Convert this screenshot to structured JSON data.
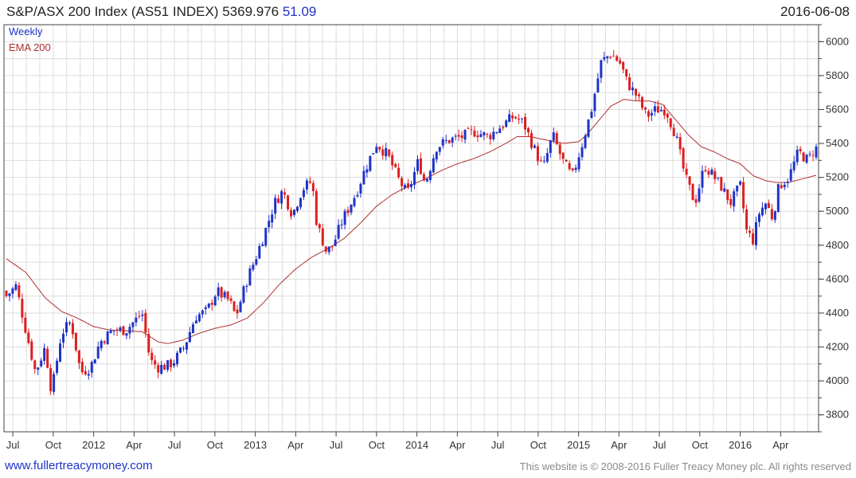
{
  "header": {
    "title": "S&P/ASX 200 Index (AS51 INDEX)",
    "last_price": "5369.976",
    "change": "51.09",
    "date": "2016-06-08"
  },
  "legend": {
    "series_1": "Weekly",
    "series_2": "EMA 200"
  },
  "footer": {
    "link": "www.fullertreacymoney.com",
    "copyright": "This website is © 2008-2016 Fuller Treacy Money plc. All rights reserved"
  },
  "colors": {
    "up": "#1f33c8",
    "down": "#dd1f1f",
    "ema": "#b03030",
    "grid": "#dcdcdc",
    "frame": "#444444"
  },
  "chart_data": {
    "type": "candlestick",
    "title": "S&P/ASX 200 Index (AS51 INDEX) 5369.976 51.09",
    "frequency": "Weekly",
    "ylim": [
      3700,
      6100
    ],
    "y_ticks": [
      3800,
      4000,
      4200,
      4400,
      4600,
      4800,
      5000,
      5200,
      5400,
      5600,
      5800,
      6000
    ],
    "x_start": 2011.46,
    "x_end": 2016.47,
    "x_ticks": [
      {
        "label": "Jul",
        "t": 2011.5
      },
      {
        "label": "Oct",
        "t": 2011.75
      },
      {
        "label": "2012",
        "t": 2012.0
      },
      {
        "label": "Apr",
        "t": 2012.25
      },
      {
        "label": "Jul",
        "t": 2012.5
      },
      {
        "label": "Oct",
        "t": 2012.75
      },
      {
        "label": "2013",
        "t": 2013.0
      },
      {
        "label": "Apr",
        "t": 2013.25
      },
      {
        "label": "Jul",
        "t": 2013.5
      },
      {
        "label": "Oct",
        "t": 2013.75
      },
      {
        "label": "2014",
        "t": 2014.0
      },
      {
        "label": "Apr",
        "t": 2014.25
      },
      {
        "label": "Jul",
        "t": 2014.5
      },
      {
        "label": "Oct",
        "t": 2014.75
      },
      {
        "label": "2015",
        "t": 2015.0
      },
      {
        "label": "Apr",
        "t": 2015.25
      },
      {
        "label": "Jul",
        "t": 2015.5
      },
      {
        "label": "Oct",
        "t": 2015.75
      },
      {
        "label": "2016",
        "t": 2016.0
      },
      {
        "label": "Apr",
        "t": 2016.25
      }
    ],
    "close_anchors": [
      [
        2011.46,
        4500
      ],
      [
        2011.52,
        4560
      ],
      [
        2011.58,
        4300
      ],
      [
        2011.64,
        4050
      ],
      [
        2011.7,
        4200
      ],
      [
        2011.74,
        3930
      ],
      [
        2011.8,
        4280
      ],
      [
        2011.86,
        4350
      ],
      [
        2011.92,
        4050
      ],
      [
        2011.98,
        4080
      ],
      [
        2012.04,
        4230
      ],
      [
        2012.12,
        4300
      ],
      [
        2012.2,
        4300
      ],
      [
        2012.25,
        4350
      ],
      [
        2012.3,
        4400
      ],
      [
        2012.35,
        4120
      ],
      [
        2012.4,
        4080
      ],
      [
        2012.46,
        4090
      ],
      [
        2012.5,
        4120
      ],
      [
        2012.56,
        4200
      ],
      [
        2012.63,
        4380
      ],
      [
        2012.7,
        4410
      ],
      [
        2012.76,
        4530
      ],
      [
        2012.84,
        4470
      ],
      [
        2012.88,
        4380
      ],
      [
        2012.95,
        4600
      ],
      [
        2013.0,
        4720
      ],
      [
        2013.06,
        4880
      ],
      [
        2013.12,
        5050
      ],
      [
        2013.17,
        5120
      ],
      [
        2013.23,
        4980
      ],
      [
        2013.29,
        5130
      ],
      [
        2013.35,
        5180
      ],
      [
        2013.38,
        4930
      ],
      [
        2013.44,
        4760
      ],
      [
        2013.48,
        4800
      ],
      [
        2013.54,
        4950
      ],
      [
        2013.62,
        5100
      ],
      [
        2013.68,
        5250
      ],
      [
        2013.75,
        5400
      ],
      [
        2013.82,
        5330
      ],
      [
        2013.88,
        5200
      ],
      [
        2013.94,
        5100
      ],
      [
        2014.01,
        5300
      ],
      [
        2014.05,
        5160
      ],
      [
        2014.12,
        5380
      ],
      [
        2014.2,
        5420
      ],
      [
        2014.28,
        5440
      ],
      [
        2014.36,
        5470
      ],
      [
        2014.44,
        5440
      ],
      [
        2014.52,
        5500
      ],
      [
        2014.6,
        5560
      ],
      [
        2014.66,
        5520
      ],
      [
        2014.72,
        5380
      ],
      [
        2014.78,
        5250
      ],
      [
        2014.84,
        5450
      ],
      [
        2014.9,
        5300
      ],
      [
        2014.96,
        5200
      ],
      [
        2015.02,
        5390
      ],
      [
        2015.08,
        5600
      ],
      [
        2015.14,
        5880
      ],
      [
        2015.2,
        5930
      ],
      [
        2015.26,
        5870
      ],
      [
        2015.3,
        5760
      ],
      [
        2015.36,
        5680
      ],
      [
        2015.42,
        5560
      ],
      [
        2015.48,
        5600
      ],
      [
        2015.54,
        5600
      ],
      [
        2015.6,
        5450
      ],
      [
        2015.66,
        5200
      ],
      [
        2015.72,
        5050
      ],
      [
        2015.78,
        5270
      ],
      [
        2015.84,
        5200
      ],
      [
        2015.88,
        5150
      ],
      [
        2015.94,
        5050
      ],
      [
        2016.0,
        5150
      ],
      [
        2016.04,
        4880
      ],
      [
        2016.08,
        4830
      ],
      [
        2016.12,
        5000
      ],
      [
        2016.16,
        5050
      ],
      [
        2016.2,
        4960
      ],
      [
        2016.24,
        5150
      ],
      [
        2016.3,
        5200
      ],
      [
        2016.36,
        5350
      ],
      [
        2016.42,
        5300
      ],
      [
        2016.46,
        5370
      ]
    ],
    "ema_anchors": [
      [
        2011.46,
        4720
      ],
      [
        2011.58,
        4640
      ],
      [
        2011.7,
        4490
      ],
      [
        2011.8,
        4410
      ],
      [
        2011.9,
        4370
      ],
      [
        2012.0,
        4320
      ],
      [
        2012.1,
        4300
      ],
      [
        2012.2,
        4295
      ],
      [
        2012.3,
        4290
      ],
      [
        2012.4,
        4230
      ],
      [
        2012.46,
        4220
      ],
      [
        2012.55,
        4240
      ],
      [
        2012.65,
        4280
      ],
      [
        2012.75,
        4310
      ],
      [
        2012.85,
        4330
      ],
      [
        2012.95,
        4370
      ],
      [
        2013.05,
        4460
      ],
      [
        2013.15,
        4570
      ],
      [
        2013.25,
        4660
      ],
      [
        2013.35,
        4730
      ],
      [
        2013.45,
        4780
      ],
      [
        2013.55,
        4840
      ],
      [
        2013.65,
        4930
      ],
      [
        2013.75,
        5030
      ],
      [
        2013.85,
        5100
      ],
      [
        2013.95,
        5150
      ],
      [
        2014.05,
        5190
      ],
      [
        2014.15,
        5240
      ],
      [
        2014.25,
        5280
      ],
      [
        2014.35,
        5310
      ],
      [
        2014.45,
        5350
      ],
      [
        2014.55,
        5400
      ],
      [
        2014.62,
        5440
      ],
      [
        2014.7,
        5440
      ],
      [
        2014.8,
        5420
      ],
      [
        2014.9,
        5400
      ],
      [
        2015.0,
        5410
      ],
      [
        2015.05,
        5450
      ],
      [
        2015.12,
        5530
      ],
      [
        2015.2,
        5620
      ],
      [
        2015.28,
        5660
      ],
      [
        2015.36,
        5650
      ],
      [
        2015.44,
        5650
      ],
      [
        2015.52,
        5630
      ],
      [
        2015.6,
        5540
      ],
      [
        2015.68,
        5450
      ],
      [
        2015.76,
        5380
      ],
      [
        2015.84,
        5350
      ],
      [
        2015.92,
        5310
      ],
      [
        2016.0,
        5280
      ],
      [
        2016.08,
        5210
      ],
      [
        2016.16,
        5180
      ],
      [
        2016.22,
        5170
      ],
      [
        2016.3,
        5170
      ],
      [
        2016.38,
        5190
      ],
      [
        2016.46,
        5210
      ]
    ],
    "weeks": 257
  }
}
